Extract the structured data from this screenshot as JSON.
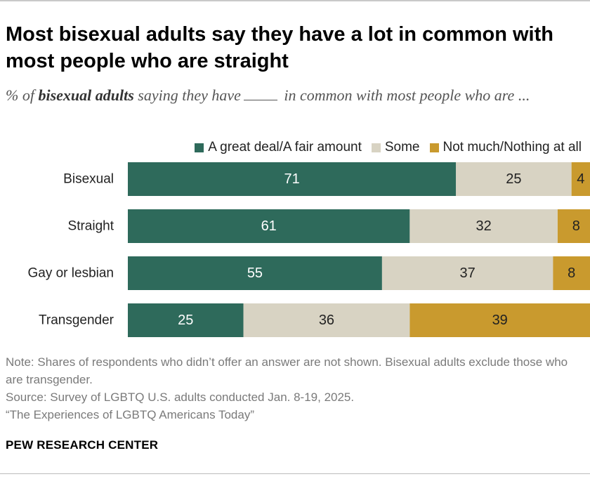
{
  "title": "Most bisexual adults say they have a lot in common with most people who are straight",
  "subtitle": {
    "part1": "% of ",
    "emphasis": "bisexual adults",
    "part2": " saying they have",
    "part3": " in common with most people who are ..."
  },
  "legend": [
    {
      "label": "A great deal/A fair amount",
      "color": "#2e6a5b"
    },
    {
      "label": "Some",
      "color": "#d8d3c3"
    },
    {
      "label": "Not much/Nothing at all",
      "color": "#c99a2e"
    }
  ],
  "chart_data": {
    "type": "bar",
    "orientation": "horizontal",
    "stacked": true,
    "categories": [
      "Bisexual",
      "Straight",
      "Gay or lesbian",
      "Transgender"
    ],
    "series": [
      {
        "name": "A great deal/A fair amount",
        "values": [
          71,
          61,
          55,
          25
        ],
        "color": "#2e6a5b",
        "label_color": "#ffffff"
      },
      {
        "name": "Some",
        "values": [
          25,
          32,
          37,
          36
        ],
        "color": "#d8d3c3",
        "label_color": "#222222"
      },
      {
        "name": "Not much/Nothing at all",
        "values": [
          4,
          8,
          8,
          39
        ],
        "color": "#c99a2e",
        "label_color": "#222222"
      }
    ],
    "xlim": [
      0,
      100
    ]
  },
  "notes": [
    "Note: Shares of respondents who didn’t offer an answer are not shown. Bisexual adults exclude those who are transgender.",
    "Source: Survey of LGBTQ U.S. adults conducted Jan. 8-19, 2025.",
    "“The Experiences of LGBTQ Americans Today”"
  ],
  "brand": "PEW RESEARCH CENTER"
}
